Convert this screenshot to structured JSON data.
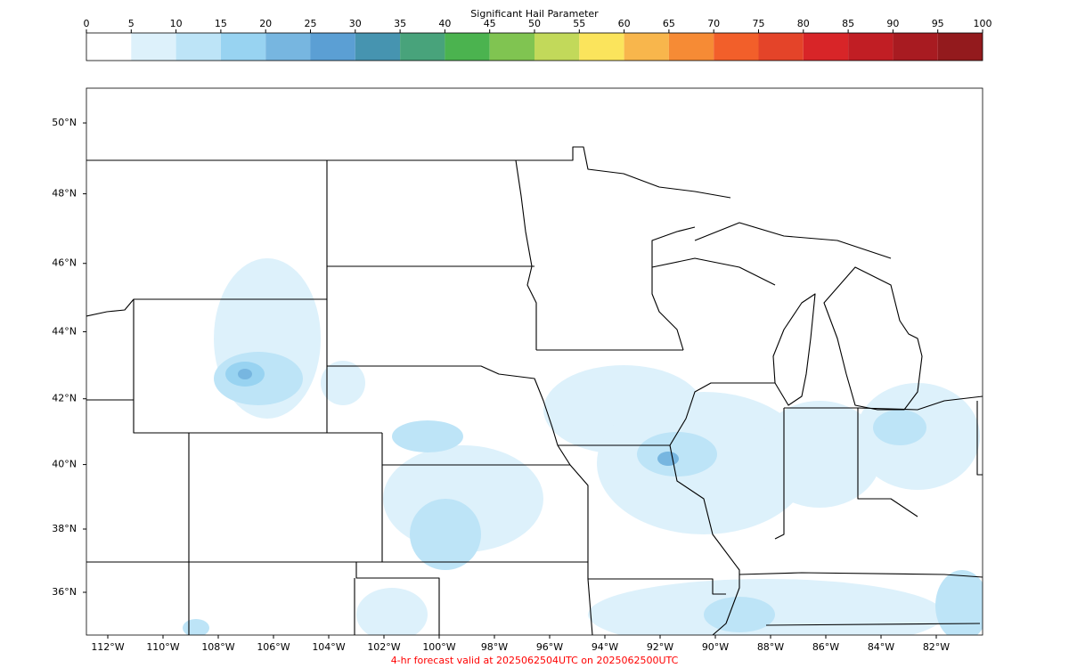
{
  "colorbar": {
    "title": "Significant Hail Parameter",
    "ticks": [
      0,
      5,
      10,
      15,
      20,
      25,
      30,
      35,
      40,
      45,
      50,
      55,
      60,
      65,
      70,
      75,
      80,
      85,
      90,
      95,
      100
    ],
    "colors": [
      "#ffffff",
      "#ddf1fb",
      "#bde4f7",
      "#98d3f1",
      "#77b6e0",
      "#5b9fd4",
      "#4694b0",
      "#48a37b",
      "#4bb34f",
      "#80c451",
      "#c2d95a",
      "#fbe45c",
      "#f8b64c",
      "#f68b35",
      "#f25f2a",
      "#e44429",
      "#d82528",
      "#c11e24",
      "#a81b21",
      "#931a1d"
    ]
  },
  "map": {
    "lat_ticks": [
      {
        "value": 50,
        "label": "50°N"
      },
      {
        "value": 48,
        "label": "48°N"
      },
      {
        "value": 46,
        "label": "46°N"
      },
      {
        "value": 44,
        "label": "44°N"
      },
      {
        "value": 42,
        "label": "42°N"
      },
      {
        "value": 40,
        "label": "40°N"
      },
      {
        "value": 38,
        "label": "38°N"
      },
      {
        "value": 36,
        "label": "36°N"
      }
    ],
    "lon_ticks": [
      {
        "value": -112,
        "label": "112°W"
      },
      {
        "value": -110,
        "label": "110°W"
      },
      {
        "value": -108,
        "label": "108°W"
      },
      {
        "value": -106,
        "label": "106°W"
      },
      {
        "value": -104,
        "label": "104°W"
      },
      {
        "value": -102,
        "label": "102°W"
      },
      {
        "value": -100,
        "label": "100°W"
      },
      {
        "value": -98,
        "label": "98°W"
      },
      {
        "value": -96,
        "label": "96°W"
      },
      {
        "value": -94,
        "label": "94°W"
      },
      {
        "value": -92,
        "label": "92°W"
      },
      {
        "value": -90,
        "label": "90°W"
      },
      {
        "value": -88,
        "label": "88°W"
      },
      {
        "value": -86,
        "label": "86°W"
      },
      {
        "value": -84,
        "label": "84°W"
      },
      {
        "value": -82,
        "label": "82°W"
      }
    ]
  },
  "footer": "4-hr forecast valid at 2025062504UTC on 2025062500UTC"
}
